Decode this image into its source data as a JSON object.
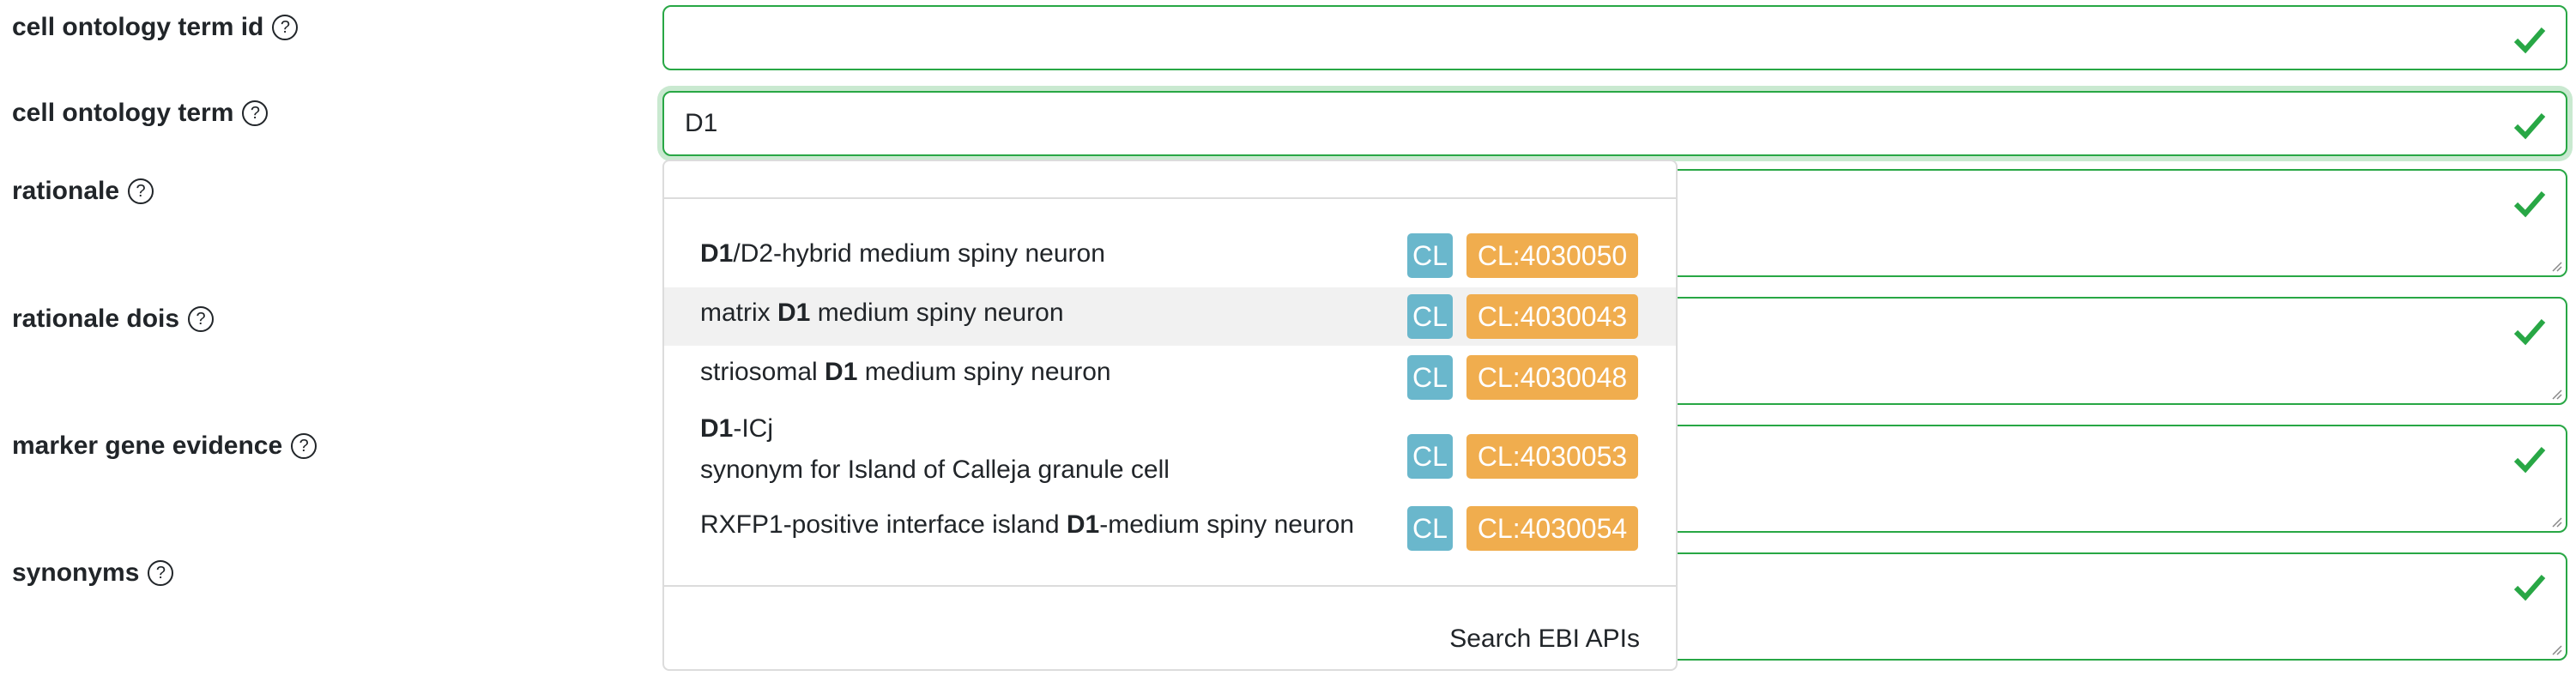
{
  "form": {
    "fields": [
      {
        "label": "cell ontology term id",
        "value": ""
      },
      {
        "label": "cell ontology term",
        "value": "D1"
      },
      {
        "label": "rationale",
        "value": ""
      },
      {
        "label": "rationale dois",
        "value": ""
      },
      {
        "label": "marker gene evidence",
        "value": ""
      },
      {
        "label": "synonyms",
        "value": ""
      }
    ],
    "help_glyph": "?",
    "valid_color": "#28a745"
  },
  "autocomplete": {
    "suggestions": [
      {
        "pre": "",
        "match": "D1",
        "post": "/D2-hybrid medium spiny neuron",
        "subtext": "",
        "ontology": "CL",
        "id": "CL:4030050"
      },
      {
        "pre": "matrix ",
        "match": "D1",
        "post": " medium spiny neuron",
        "subtext": "",
        "ontology": "CL",
        "id": "CL:4030043"
      },
      {
        "pre": "striosomal ",
        "match": "D1",
        "post": " medium spiny neuron",
        "subtext": "",
        "ontology": "CL",
        "id": "CL:4030048"
      },
      {
        "pre": "",
        "match": "D1",
        "post": "-ICj",
        "subtext": "synonym for Island of Calleja granule cell",
        "ontology": "CL",
        "id": "CL:4030053"
      },
      {
        "pre": "RXFP1-positive interface island ",
        "match": "D1",
        "post": "-medium spiny neuron",
        "subtext": "",
        "ontology": "CL",
        "id": "CL:4030054"
      }
    ],
    "highlighted_index": 1,
    "search_link": "Search EBI APIs",
    "colors": {
      "ontology_badge": "#6ab7cc",
      "id_badge": "#f0ad4e"
    }
  }
}
